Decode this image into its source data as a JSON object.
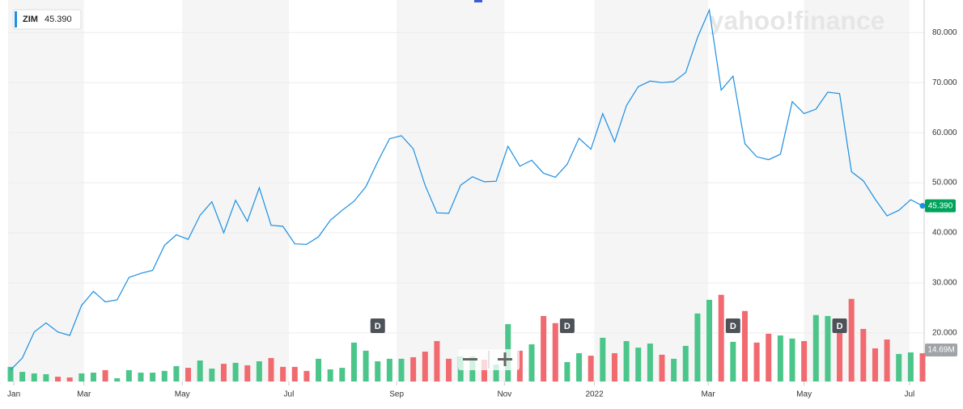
{
  "chart_data": {
    "type": "line",
    "watermark": "yahoo!finance",
    "series": [
      {
        "name": "ZIM",
        "color": "#1a8fe3",
        "last_label": "45.390",
        "values": [
          12.6,
          15,
          20.2,
          22,
          20.2,
          19.5,
          25.5,
          28.3,
          26.2,
          26.6,
          31.1,
          31.9,
          32.5,
          37.5,
          39.6,
          38.7,
          43.5,
          46.2,
          40,
          46.5,
          42.3,
          49,
          41.5,
          41.3,
          37.8,
          37.7,
          39.2,
          42.5,
          44.5,
          46.3,
          49.2,
          54.2,
          58.8,
          59.4,
          56.8,
          49.5,
          44,
          43.9,
          49.5,
          51.2,
          50.2,
          50.3,
          57.3,
          53.3,
          54.5,
          51.9,
          51.1,
          53.7,
          58.9,
          56.7,
          63.8,
          58.2,
          65.4,
          69.2,
          70.3,
          70,
          70.2,
          72,
          79,
          84.5,
          68.5,
          71.3,
          57.8,
          55.2,
          54.6,
          55.7,
          66.2,
          63.8,
          64.7,
          68.1,
          67.8,
          52.2,
          50.4,
          46.7,
          43.4,
          44.5,
          46.6,
          45.39
        ]
      }
    ],
    "volume": {
      "up_color": "#4bc58a",
      "down_color": "#f06a6f",
      "last_label": "14.69M",
      "values": [
        7.6,
        5,
        4.2,
        3.8,
        2.5,
        2.1,
        4.2,
        4.6,
        5.9,
        1.7,
        5.9,
        4.6,
        4.6,
        5.5,
        8,
        7.1,
        10.9,
        6.7,
        9.2,
        9.7,
        8.4,
        10.5,
        12.2,
        7.6,
        7.6,
        5.5,
        11.8,
        6.3,
        7.1,
        20.2,
        16,
        10.5,
        11.8,
        11.8,
        12.6,
        15.5,
        21,
        11.8,
        13,
        13,
        11.3,
        8.8,
        29.8,
        16,
        19.3,
        34,
        30.3,
        10.1,
        14.7,
        13.4,
        22.7,
        14.7,
        21,
        17.6,
        19.7,
        13.9,
        11.8,
        18.5,
        35.3,
        42.4,
        45,
        20.6,
        36.6,
        20.2,
        24.8,
        23.9,
        22.3,
        21,
        34.5,
        34,
        27.3,
        42.9,
        27.3,
        17.2,
        21.8,
        14.3,
        15.1,
        14.69
      ]
    },
    "dividends": [
      {
        "index": 31,
        "label": "D"
      },
      {
        "index": 47,
        "label": "D"
      },
      {
        "index": 61,
        "label": "D"
      },
      {
        "index": 70,
        "label": "D"
      }
    ],
    "xlim": [
      0,
      77
    ],
    "xticks": [
      {
        "value": 0.28,
        "label": "Jan"
      },
      {
        "value": 6.2,
        "label": "Mar"
      },
      {
        "value": 14.5,
        "label": "May"
      },
      {
        "value": 23.5,
        "label": "Jul"
      },
      {
        "value": 32.6,
        "label": "Sep"
      },
      {
        "value": 41.7,
        "label": "Nov"
      },
      {
        "value": 49.3,
        "label": "2022"
      },
      {
        "value": 58.9,
        "label": "Mar"
      },
      {
        "value": 67,
        "label": "May"
      },
      {
        "value": 75.9,
        "label": "Jul"
      }
    ],
    "ylim": [
      10.3,
      86.5
    ],
    "yticks": [
      {
        "value": 20,
        "label": "20.000"
      },
      {
        "value": 30,
        "label": "30.000"
      },
      {
        "value": 40,
        "label": "40.000"
      },
      {
        "value": 50,
        "label": "50.000"
      },
      {
        "value": 60,
        "label": "60.000"
      },
      {
        "value": 70,
        "label": "70.000"
      },
      {
        "value": 80,
        "label": "80.000"
      }
    ],
    "y2lim": [
      0,
      198
    ],
    "grid": true
  }
}
